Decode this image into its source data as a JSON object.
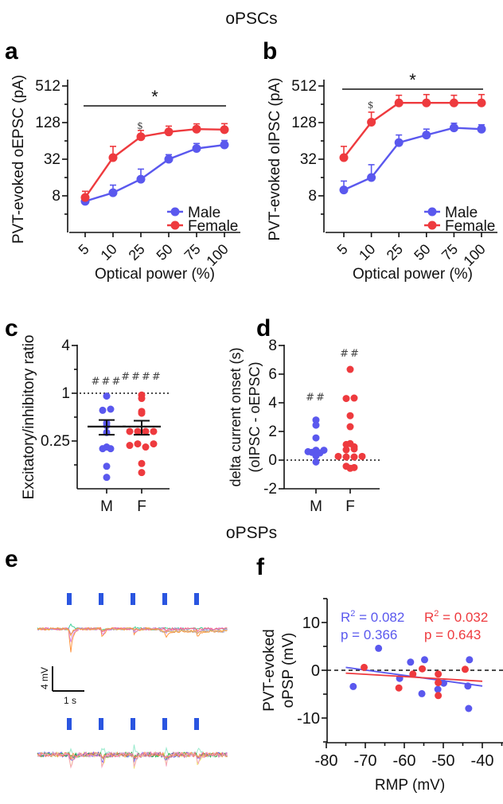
{
  "titles": {
    "top": "oPSCs",
    "bottom": "oPSPs"
  },
  "panel_letters": [
    "a",
    "b",
    "c",
    "d",
    "e",
    "f"
  ],
  "colors": {
    "male": "#5a58ee",
    "female": "#ee3a3e"
  },
  "chart_data": [
    {
      "id": "a",
      "type": "line",
      "xlabel": "Optical power (%)",
      "ylabel": "PVT-evoked oEPSC (pA)",
      "yscale": "log2",
      "yticks": [
        "8",
        "32",
        "128",
        "512"
      ],
      "categories": [
        "5",
        "10",
        "25",
        "50",
        "75",
        "100"
      ],
      "series": [
        {
          "name": "Male",
          "values": [
            6.5,
            9,
            15,
            32,
            48,
            55
          ],
          "err": [
            1.5,
            3,
            7,
            6,
            10,
            10
          ]
        },
        {
          "name": "Female",
          "values": [
            7.5,
            34,
            75,
            90,
            100,
            98
          ],
          "err": [
            2,
            18,
            20,
            22,
            22,
            25
          ]
        }
      ],
      "annotations": {
        "significance": "*",
        "dollar": "$",
        "dollar_at": "25"
      },
      "legend": "bottom-right"
    },
    {
      "id": "b",
      "type": "line",
      "xlabel": "Optical power (%)",
      "ylabel": "PVT-evoked oIPSC (pA)",
      "yscale": "log2",
      "yticks": [
        "8",
        "32",
        "128",
        "512"
      ],
      "categories": [
        "5",
        "10",
        "25",
        "50",
        "75",
        "100"
      ],
      "series": [
        {
          "name": "Male",
          "values": [
            10,
            16,
            60,
            80,
            105,
            100
          ],
          "err": [
            4,
            10,
            20,
            20,
            20,
            18
          ]
        },
        {
          "name": "Female",
          "values": [
            34,
            130,
            270,
            270,
            270,
            270
          ],
          "err": [
            18,
            60,
            90,
            100,
            90,
            100
          ]
        }
      ],
      "annotations": {
        "significance": "*",
        "dollar": "$",
        "dollar_at": "10"
      },
      "legend": "bottom-right"
    },
    {
      "id": "c",
      "type": "scatter",
      "ylabel": "Excitatory/inhibitory ratio",
      "yscale": "log2",
      "yticks": [
        "0.25",
        "1",
        "4"
      ],
      "reference_line": 1,
      "categories": [
        "M",
        "F"
      ],
      "groups": [
        {
          "name": "M",
          "values": [
            0.92,
            0.61,
            0.63,
            0.39,
            0.42,
            0.32,
            0.2,
            0.21,
            0.2,
            0.12,
            0.087
          ],
          "mean": 0.38,
          "sem": [
            0.3,
            0.46
          ],
          "hash": "###"
        },
        {
          "name": "F",
          "values": [
            0.95,
            0.86,
            0.56,
            0.59,
            0.33,
            0.33,
            0.33,
            0.33,
            0.22,
            0.23,
            0.21,
            0.23,
            0.13,
            0.1
          ],
          "mean": 0.38,
          "sem": [
            0.3,
            0.45
          ],
          "hash": "####"
        }
      ]
    },
    {
      "id": "d",
      "type": "scatter",
      "ylabel": "delta current onset (s)",
      "ylabel2": "(oIPSC - oEPSC)",
      "ylim": [
        -2,
        8
      ],
      "yticks": [
        "-2",
        "0",
        "2",
        "4",
        "6",
        "8"
      ],
      "reference_line": 0,
      "categories": [
        "M",
        "F"
      ],
      "groups": [
        {
          "name": "M",
          "values": [
            2.8,
            2.44,
            1.55,
            0.59,
            0.54,
            0.69,
            0.5,
            0.69,
            0.3,
            -0.13
          ],
          "hash": "##"
        },
        {
          "name": "F",
          "values": [
            6.33,
            4.3,
            4.33,
            3.1,
            2.33,
            1.15,
            1.09,
            0.93,
            0.72,
            0.78,
            0.26,
            0.22,
            0.22,
            0.26,
            -0.57,
            -0.43,
            -0.52
          ],
          "hash": "##"
        }
      ]
    },
    {
      "id": "f",
      "type": "scatter",
      "xlabel": "RMP (mV)",
      "ylabel": "PVT-evoked",
      "ylabel2": "oPSP (mV)",
      "xlim": [
        -80,
        -40
      ],
      "ylim": [
        -15,
        15
      ],
      "xticks": [
        "-80",
        "-70",
        "-60",
        "-50",
        "-40"
      ],
      "yticks": [
        "-10",
        "0",
        "10"
      ],
      "series": [
        {
          "name": "Male",
          "x": [
            -73.1,
            -66.6,
            -58.4,
            -61.2,
            -54.8,
            -55.5,
            -51.4,
            -49.9,
            -43.7,
            -43.3,
            -43.5
          ],
          "y": [
            -3.4,
            4.6,
            1.7,
            -1.7,
            2.2,
            -4.9,
            -4,
            -2.7,
            -3.3,
            2.2,
            -8
          ],
          "fit": [
            [
              -75,
              0.6
            ],
            [
              -40,
              -3.3
            ]
          ],
          "r2": "R",
          "r2_sup": "2",
          "r2_val": " = 0.082",
          "p": "p = 0.366"
        },
        {
          "name": "Female",
          "x": [
            -70.3,
            -57.8,
            -61.4,
            -55.4,
            -51.3,
            -51.3,
            -51.3,
            -44.4
          ],
          "y": [
            0.6,
            -0.8,
            -3.7,
            0.3,
            -0.8,
            -2.6,
            -5.3,
            0.2
          ],
          "fit": [
            [
              -75,
              -0.6
            ],
            [
              -40,
              -2.3
            ]
          ],
          "r2": "R",
          "r2_sup": "2",
          "r2_val": " = 0.032",
          "p": "p = 0.643"
        }
      ]
    },
    {
      "id": "e",
      "type": "traces",
      "scale_v": "4 mV",
      "scale_t": "1 s",
      "pulses": 5
    }
  ]
}
